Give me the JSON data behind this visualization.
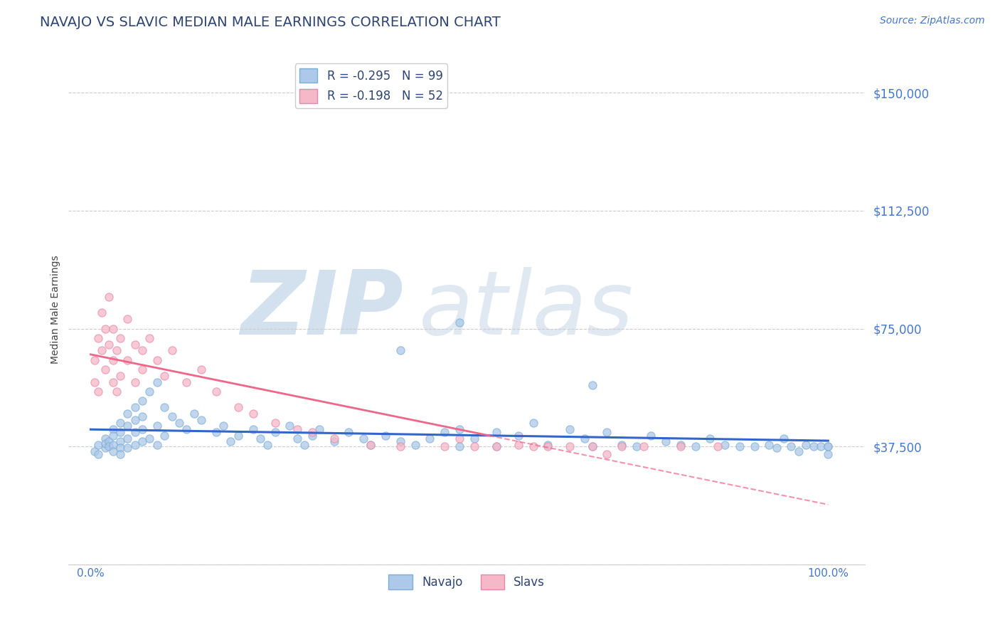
{
  "title": "NAVAJO VS SLAVIC MEDIAN MALE EARNINGS CORRELATION CHART",
  "source_text": "Source: ZipAtlas.com",
  "ylabel": "Median Male Earnings",
  "ytick_vals": [
    0,
    37500,
    75000,
    112500,
    150000
  ],
  "ytick_labels": [
    "",
    "$37,500",
    "$75,000",
    "$112,500",
    "$150,000"
  ],
  "xtick_vals": [
    0.0,
    0.25,
    0.5,
    0.75,
    1.0
  ],
  "xtick_labels": [
    "0.0%",
    "",
    "",
    "",
    "100.0%"
  ],
  "xlim": [
    -0.03,
    1.05
  ],
  "ylim": [
    10000,
    162000
  ],
  "title_color": "#2E4473",
  "title_fontsize": 14,
  "axis_label_color": "#444444",
  "tick_label_color": "#4477cc",
  "source_color": "#4477cc",
  "navajo_color": "#adc8e8",
  "slavs_color": "#f5b8c8",
  "navajo_edge": "#7aaed6",
  "slavs_edge": "#e888a8",
  "navajo_line_color": "#3366cc",
  "slavs_line_color": "#ee6688",
  "legend_navajo_label": "R = -0.295   N = 99",
  "legend_slavs_label": "R = -0.198   N = 52",
  "watermark_zip_color": "#b0c8e0",
  "watermark_atlas_color": "#c8d8e8",
  "navajo_x": [
    0.005,
    0.01,
    0.01,
    0.02,
    0.02,
    0.02,
    0.025,
    0.025,
    0.03,
    0.03,
    0.03,
    0.03,
    0.04,
    0.04,
    0.04,
    0.04,
    0.04,
    0.05,
    0.05,
    0.05,
    0.05,
    0.06,
    0.06,
    0.06,
    0.06,
    0.07,
    0.07,
    0.07,
    0.07,
    0.08,
    0.08,
    0.09,
    0.09,
    0.09,
    0.1,
    0.1,
    0.11,
    0.12,
    0.13,
    0.14,
    0.15,
    0.17,
    0.18,
    0.19,
    0.2,
    0.22,
    0.23,
    0.24,
    0.25,
    0.27,
    0.28,
    0.29,
    0.3,
    0.31,
    0.33,
    0.35,
    0.37,
    0.38,
    0.4,
    0.42,
    0.44,
    0.46,
    0.48,
    0.5,
    0.5,
    0.52,
    0.55,
    0.55,
    0.58,
    0.6,
    0.62,
    0.65,
    0.67,
    0.68,
    0.7,
    0.72,
    0.74,
    0.76,
    0.78,
    0.8,
    0.82,
    0.84,
    0.86,
    0.88,
    0.9,
    0.92,
    0.93,
    0.94,
    0.95,
    0.96,
    0.97,
    0.98,
    0.99,
    1.0,
    1.0,
    1.0,
    0.42,
    0.5,
    0.68
  ],
  "navajo_y": [
    36000,
    38000,
    35000,
    40000,
    37000,
    38500,
    39000,
    37500,
    43000,
    41000,
    38000,
    36000,
    45000,
    42000,
    39000,
    37000,
    35000,
    48000,
    44000,
    40000,
    37000,
    50000,
    46000,
    42000,
    38000,
    52000,
    47000,
    43000,
    39000,
    55000,
    40000,
    58000,
    44000,
    38000,
    50000,
    41000,
    47000,
    45000,
    43000,
    48000,
    46000,
    42000,
    44000,
    39000,
    41000,
    43000,
    40000,
    38000,
    42000,
    44000,
    40000,
    38000,
    41000,
    43000,
    39000,
    42000,
    40000,
    38000,
    41000,
    39000,
    38000,
    40000,
    42000,
    37500,
    43000,
    40000,
    42000,
    37500,
    41000,
    45000,
    38000,
    43000,
    40000,
    37500,
    42000,
    38000,
    37500,
    41000,
    39000,
    38000,
    37500,
    40000,
    38000,
    37500,
    37500,
    38000,
    37000,
    40000,
    37500,
    36000,
    38000,
    37500,
    37500,
    37500,
    35000,
    37500,
    68000,
    77000,
    57000
  ],
  "slavs_x": [
    0.005,
    0.005,
    0.01,
    0.01,
    0.015,
    0.015,
    0.02,
    0.02,
    0.025,
    0.025,
    0.03,
    0.03,
    0.03,
    0.035,
    0.035,
    0.04,
    0.04,
    0.05,
    0.05,
    0.06,
    0.06,
    0.07,
    0.07,
    0.08,
    0.09,
    0.1,
    0.11,
    0.13,
    0.15,
    0.17,
    0.2,
    0.22,
    0.25,
    0.28,
    0.3,
    0.33,
    0.38,
    0.42,
    0.48,
    0.5,
    0.52,
    0.55,
    0.58,
    0.6,
    0.62,
    0.65,
    0.68,
    0.7,
    0.72,
    0.75,
    0.8,
    0.85
  ],
  "slavs_y": [
    58000,
    65000,
    72000,
    55000,
    68000,
    80000,
    75000,
    62000,
    85000,
    70000,
    65000,
    58000,
    75000,
    68000,
    55000,
    72000,
    60000,
    78000,
    65000,
    70000,
    58000,
    68000,
    62000,
    72000,
    65000,
    60000,
    68000,
    58000,
    62000,
    55000,
    50000,
    48000,
    45000,
    43000,
    42000,
    40000,
    38000,
    37500,
    37500,
    40000,
    37500,
    37500,
    38000,
    37500,
    37500,
    37500,
    37500,
    35000,
    37500,
    37500,
    37500,
    37500
  ]
}
